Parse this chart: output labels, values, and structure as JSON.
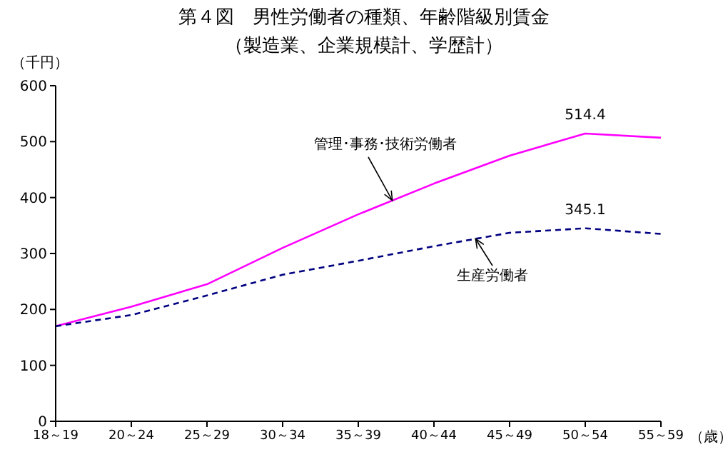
{
  "chart_data": {
    "type": "line",
    "title": "第４図　男性労働者の種類、年齢階級別賃金",
    "subtitle": "（製造業、企業規模計、学歴計）",
    "ylabel": "（千円）",
    "xlabel": "（歳）",
    "categories": [
      "18～19",
      "20～24",
      "25～29",
      "30～34",
      "35～39",
      "40～44",
      "45～49",
      "50～54",
      "55～59"
    ],
    "series": [
      {
        "name": "管理･事務･技術労働者",
        "color": "#ff00ff",
        "line_style": "solid",
        "values": [
          170,
          205,
          245,
          310,
          370,
          425,
          475,
          514.4,
          507
        ],
        "value_labels": [
          null,
          null,
          null,
          null,
          null,
          null,
          null,
          "514.4",
          null
        ]
      },
      {
        "name": "生産労働者",
        "color": "#000080",
        "line_style": "dashed",
        "values": [
          170,
          190,
          225,
          262,
          287,
          313,
          337,
          345.1,
          335
        ],
        "value_labels": [
          null,
          null,
          null,
          null,
          null,
          null,
          null,
          "345.1",
          null
        ]
      }
    ],
    "ylim": [
      0,
      600
    ],
    "yticks": [
      0,
      100,
      200,
      300,
      400,
      500,
      600
    ],
    "grid": false,
    "legend": false,
    "marker": "none"
  }
}
